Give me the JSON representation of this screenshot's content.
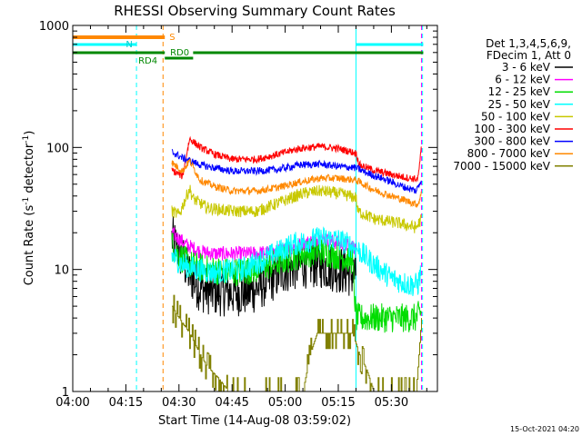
{
  "chart_data": {
    "type": "line",
    "title": "RHESSI Observing Summary Count Rates",
    "xlabel": "Start Time (14-Aug-08 03:59:02)",
    "ylabel_main": "Count Rate (s",
    "ylabel_sup1": "-1",
    "ylabel_mid": " detector",
    "ylabel_sup2": "-1",
    "ylabel_end": ")",
    "yscale": "log",
    "ylim": [
      1,
      1000
    ],
    "xlim_min": [
      0,
      103
    ],
    "x_ticks": [
      {
        "label": "04:00",
        "min": 0
      },
      {
        "label": "04:15",
        "min": 15
      },
      {
        "label": "04:30",
        "min": 30
      },
      {
        "label": "04:45",
        "min": 45
      },
      {
        "label": "05:00",
        "min": 60
      },
      {
        "label": "05:15",
        "min": 75
      },
      {
        "label": "05:30",
        "min": 90
      }
    ],
    "y_ticks": [
      {
        "label": "1",
        "value": 1
      },
      {
        "label": "10",
        "value": 10
      },
      {
        "label": "100",
        "value": 100
      },
      {
        "label": "1000",
        "value": 1000
      }
    ],
    "legend_header": [
      "Det 1,3,4,5,6,9,",
      "FDecim 1, Att 0"
    ],
    "legend_position": "right",
    "timestamp": "15-Oct-2021 04:20",
    "series": [
      {
        "name": "3 - 6 keV",
        "color": "#000000",
        "noise": 0.2,
        "points": [
          [
            28,
            18
          ],
          [
            30,
            14
          ],
          [
            33,
            9
          ],
          [
            36,
            7
          ],
          [
            40,
            6.5
          ],
          [
            45,
            6.5
          ],
          [
            50,
            6.5
          ],
          [
            55,
            8
          ],
          [
            60,
            10
          ],
          [
            65,
            11
          ],
          [
            70,
            11
          ],
          [
            75,
            10
          ],
          [
            80,
            9
          ]
        ]
      },
      {
        "name": "6 - 12 keV",
        "color": "#ff00ff",
        "noise": 0.06,
        "points": [
          [
            28,
            20
          ],
          [
            32,
            16
          ],
          [
            36,
            14
          ],
          [
            40,
            13.5
          ],
          [
            50,
            13.5
          ],
          [
            58,
            14
          ],
          [
            63,
            15.5
          ],
          [
            70,
            18
          ],
          [
            75,
            16.5
          ],
          [
            80,
            15
          ]
        ]
      },
      {
        "name": "12 - 25 keV",
        "color": "#00dd00",
        "noise": 0.12,
        "points": [
          [
            28,
            16
          ],
          [
            30,
            13
          ],
          [
            33,
            11
          ],
          [
            38,
            10
          ],
          [
            45,
            9.5
          ],
          [
            52,
            10
          ],
          [
            60,
            12
          ],
          [
            65,
            13.5
          ],
          [
            70,
            14
          ],
          [
            75,
            13
          ],
          [
            79,
            12
          ],
          [
            80,
            4
          ],
          [
            97,
            4
          ],
          [
            98.5,
            4.5
          ]
        ]
      },
      {
        "name": "25 - 50 keV",
        "color": "#00ffff",
        "noise": 0.1,
        "points": [
          [
            28,
            13
          ],
          [
            31,
            11
          ],
          [
            35,
            10
          ],
          [
            40,
            9.5
          ],
          [
            48,
            10
          ],
          [
            56,
            13
          ],
          [
            62,
            16
          ],
          [
            70,
            18
          ],
          [
            75,
            17.5
          ],
          [
            80,
            15
          ],
          [
            85,
            11
          ],
          [
            90,
            8.5
          ],
          [
            95,
            7.5
          ],
          [
            97.5,
            7.5
          ],
          [
            98.5,
            10
          ]
        ]
      },
      {
        "name": "50 - 100 keV",
        "color": "#c8c800",
        "noise": 0.05,
        "points": [
          [
            28,
            30
          ],
          [
            30,
            28
          ],
          [
            33,
            46
          ],
          [
            34,
            38
          ],
          [
            38,
            32
          ],
          [
            45,
            30
          ],
          [
            52,
            30
          ],
          [
            58,
            35
          ],
          [
            65,
            42
          ],
          [
            70,
            44
          ],
          [
            75,
            42
          ],
          [
            80,
            39
          ],
          [
            80.5,
            30
          ],
          [
            85,
            26
          ],
          [
            92,
            24
          ],
          [
            97,
            22
          ],
          [
            98.5,
            26
          ]
        ]
      },
      {
        "name": "100 - 300 keV",
        "color": "#ff0000",
        "noise": 0.03,
        "points": [
          [
            28,
            65
          ],
          [
            31,
            58
          ],
          [
            33,
            118
          ],
          [
            36,
            100
          ],
          [
            40,
            88
          ],
          [
            45,
            80
          ],
          [
            52,
            80
          ],
          [
            58,
            88
          ],
          [
            64,
            98
          ],
          [
            70,
            102
          ],
          [
            75,
            98
          ],
          [
            80,
            90
          ],
          [
            81,
            72
          ],
          [
            85,
            65
          ],
          [
            90,
            60
          ],
          [
            95,
            56
          ],
          [
            97.5,
            55
          ],
          [
            98.5,
            100
          ]
        ]
      },
      {
        "name": "300 - 800 keV",
        "color": "#0000ff",
        "noise": 0.03,
        "points": [
          [
            28,
            92
          ],
          [
            31,
            82
          ],
          [
            33,
            78
          ],
          [
            36,
            72
          ],
          [
            40,
            68
          ],
          [
            45,
            64
          ],
          [
            52,
            64
          ],
          [
            58,
            66
          ],
          [
            64,
            72
          ],
          [
            70,
            73
          ],
          [
            75,
            70
          ],
          [
            80,
            68
          ],
          [
            83,
            62
          ],
          [
            88,
            55
          ],
          [
            93,
            48
          ],
          [
            97,
            44
          ],
          [
            98.5,
            55
          ]
        ]
      },
      {
        "name": "800 - 7000 keV",
        "color": "#ff8800",
        "noise": 0.03,
        "points": [
          [
            28,
            75
          ],
          [
            31,
            64
          ],
          [
            33,
            78
          ],
          [
            36,
            54
          ],
          [
            40,
            48
          ],
          [
            45,
            44
          ],
          [
            52,
            44
          ],
          [
            58,
            47
          ],
          [
            64,
            52
          ],
          [
            70,
            56
          ],
          [
            75,
            56
          ],
          [
            80,
            54
          ],
          [
            85,
            45
          ],
          [
            90,
            40
          ],
          [
            95,
            36
          ],
          [
            97.5,
            34
          ],
          [
            98.5,
            42
          ]
        ]
      },
      {
        "name": "7000 - 15000 keV",
        "color": "#808000",
        "noise": 0,
        "points": [
          [
            28,
            5
          ],
          [
            30,
            4
          ],
          [
            33,
            3
          ],
          [
            36,
            2
          ],
          [
            38,
            1.6
          ],
          [
            41,
            1.3
          ],
          [
            44,
            1
          ],
          [
            65,
            1
          ],
          [
            67,
            2
          ],
          [
            69,
            3
          ],
          [
            79,
            3
          ],
          [
            81,
            2
          ],
          [
            83,
            1.5
          ],
          [
            85,
            1
          ],
          [
            97,
            1
          ],
          [
            98.5,
            4
          ]
        ]
      }
    ],
    "bars": [
      {
        "label": "S",
        "color": "#ff8800",
        "start_min": 0,
        "end_min": 26,
        "end_label": "S"
      },
      {
        "label": "N",
        "color": "#00ffff",
        "start_min": 0,
        "end_min": 18,
        "after_start": 80,
        "after_end": 99
      },
      {
        "label": "RD0",
        "color": "#008800",
        "start_min": 0,
        "end_min": 26,
        "mid_start": 26,
        "mid_end": 34,
        "after_start": 34,
        "after_end": 99
      }
    ],
    "bar_labels": {
      "s": "S",
      "n": "N",
      "rd4": "RD4",
      "rd0": "RD0"
    },
    "vlines": [
      {
        "min": 0,
        "color": "#00ffff",
        "style": "solid"
      },
      {
        "min": 18,
        "color": "#00ffff",
        "style": "dash"
      },
      {
        "min": 25.5,
        "color": "#ff8800",
        "style": "dash"
      },
      {
        "min": 80,
        "color": "#00ffff",
        "style": "solid"
      },
      {
        "min": 98.8,
        "color": "#00ffff",
        "style": "dash"
      },
      {
        "min": 98.5,
        "color": "#ff00ff",
        "style": "dash"
      }
    ]
  }
}
